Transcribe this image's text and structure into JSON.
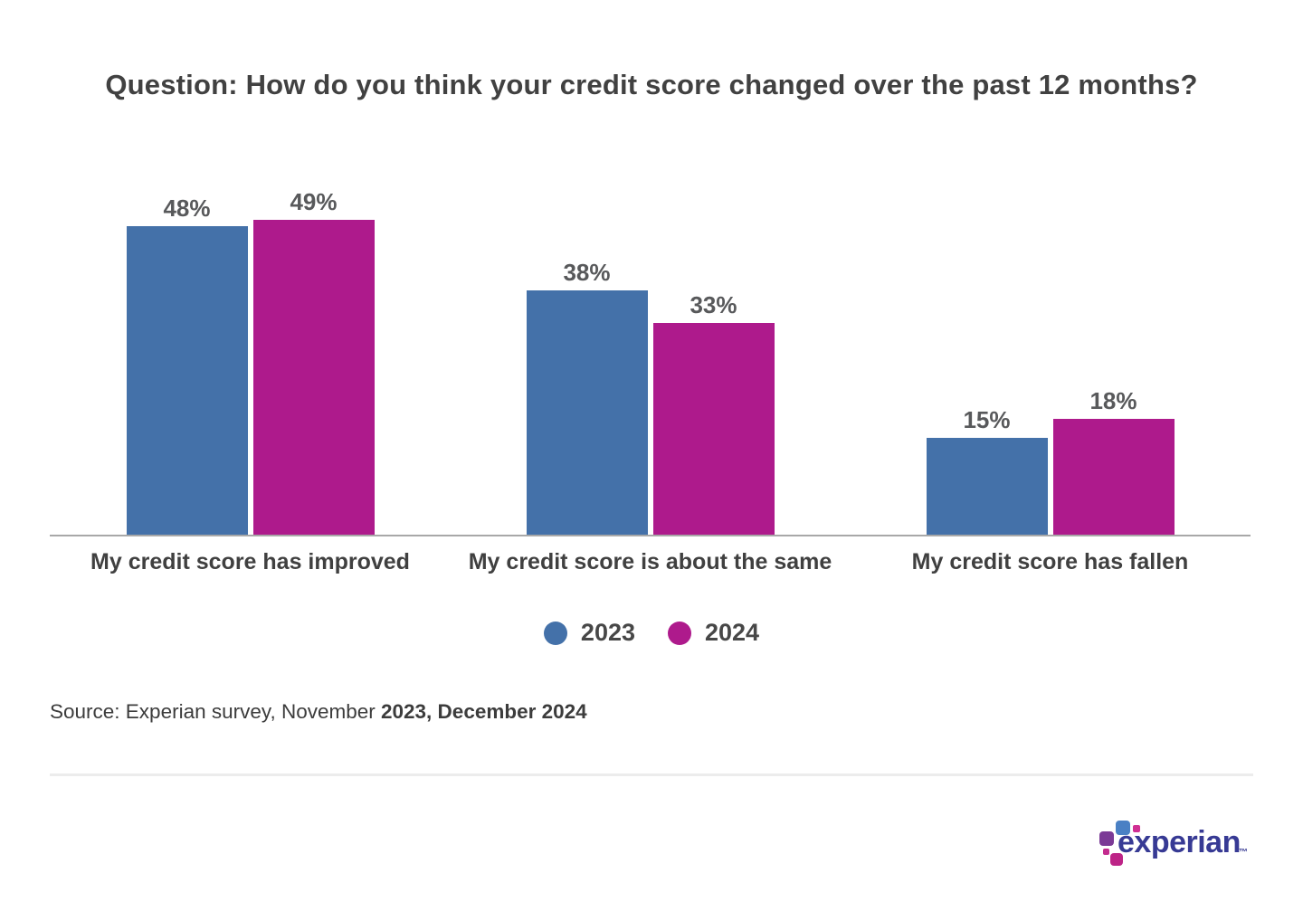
{
  "title": "Question: How do you think your credit score changed over the past 12 months?",
  "chart_data": {
    "type": "bar",
    "title": "Question: How do you think your credit score changed over the past 12 months?",
    "categories": [
      "My credit score has improved",
      "My credit score is about the same",
      "My credit score has fallen"
    ],
    "series": [
      {
        "name": "2023",
        "color": "#4471a9",
        "values": [
          48,
          38,
          15
        ],
        "display": [
          "48%",
          "38%",
          "15%"
        ]
      },
      {
        "name": "2024",
        "color": "#ae1a8c",
        "values": [
          49,
          33,
          18
        ],
        "display": [
          "49%",
          "33%",
          "18%"
        ]
      }
    ],
    "xlabel": "",
    "ylabel": "",
    "ylim": [
      0,
      52
    ],
    "value_suffix": "%",
    "grid": false,
    "legend_position": "bottom",
    "axis_line_color": "#a8a8a8"
  },
  "legend": {
    "items": [
      {
        "label": "2023",
        "color": "#4471a9"
      },
      {
        "label": "2024",
        "color": "#ae1a8c"
      }
    ]
  },
  "source": {
    "prefix": "Source: Experian survey, November ",
    "bold": "2023, December 2024"
  },
  "logo": {
    "wordmark": "experian",
    "trademark": "™",
    "wordmark_color": "#373a94",
    "block_colors": [
      "#4a80c4",
      "#d02f93",
      "#7b3a96",
      "#c32b8e",
      "#bd2487"
    ]
  }
}
